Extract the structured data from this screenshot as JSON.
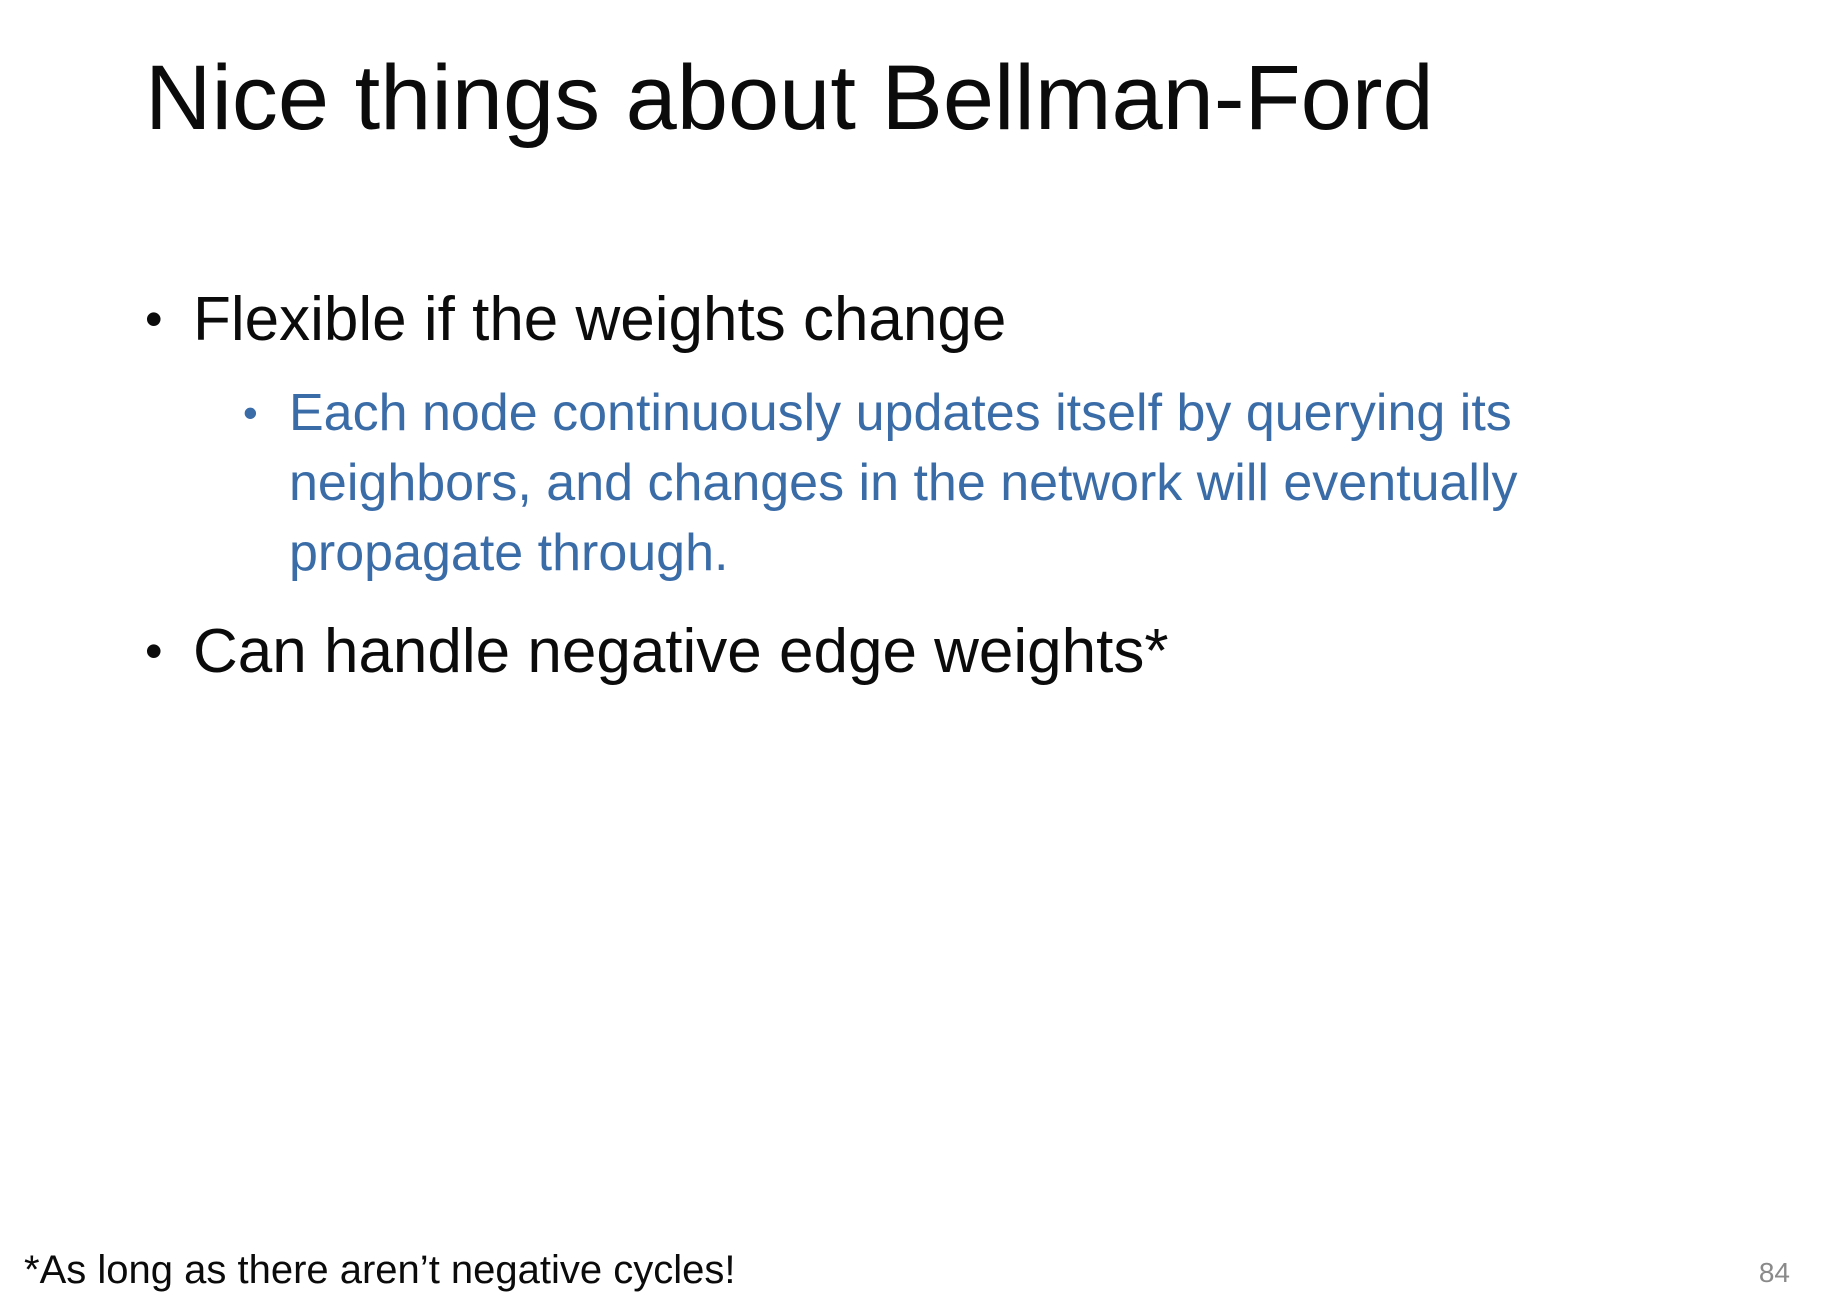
{
  "slide": {
    "title": "Nice things about Bellman-Ford",
    "bullets": [
      {
        "text": "Flexible if the weights change",
        "sub_bullets": [
          {
            "text": "Each node continuously updates itself by querying its neighbors, and changes in the network will eventually propagate through."
          }
        ]
      },
      {
        "text": "Can handle negative edge weights*",
        "sub_bullets": []
      }
    ],
    "bullet_symbol": "•",
    "footnote": "*As long as there aren’t negative cycles!",
    "page_number": "84"
  },
  "colors": {
    "title_text": "#0b0b0b",
    "body_text": "#0b0b0b",
    "sub_bullet_text": "#3a6ca8",
    "page_number_text": "#8a8a8a",
    "background": "#ffffff"
  }
}
